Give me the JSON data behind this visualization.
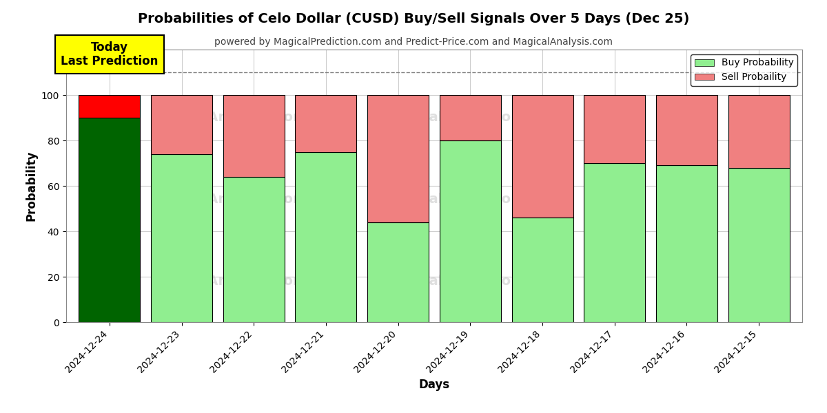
{
  "title": "Probabilities of Celo Dollar (CUSD) Buy/Sell Signals Over 5 Days (Dec 25)",
  "subtitle": "powered by MagicalPrediction.com and Predict-Price.com and MagicalAnalysis.com",
  "xlabel": "Days",
  "ylabel": "Probability",
  "dates": [
    "2024-12-24",
    "2024-12-23",
    "2024-12-22",
    "2024-12-21",
    "2024-12-20",
    "2024-12-19",
    "2024-12-18",
    "2024-12-17",
    "2024-12-16",
    "2024-12-15"
  ],
  "buy_values": [
    90,
    74,
    64,
    75,
    44,
    80,
    46,
    70,
    69,
    68
  ],
  "sell_values": [
    10,
    26,
    36,
    25,
    56,
    20,
    54,
    30,
    31,
    32
  ],
  "today_buy_color": "#006400",
  "today_sell_color": "#ff0000",
  "buy_color": "#90ee90",
  "sell_color": "#f08080",
  "today_annotation": "Today\nLast Prediction",
  "today_annotation_bg": "#ffff00",
  "dashed_line_y": 110,
  "ylim": [
    0,
    120
  ],
  "yticks": [
    0,
    20,
    40,
    60,
    80,
    100
  ],
  "legend_buy_label": "Buy Probability",
  "legend_sell_label": "Sell Probaility",
  "bar_edge_color": "#000000",
  "bar_edge_width": 0.8,
  "grid_color": "#cccccc",
  "bar_width": 0.85
}
